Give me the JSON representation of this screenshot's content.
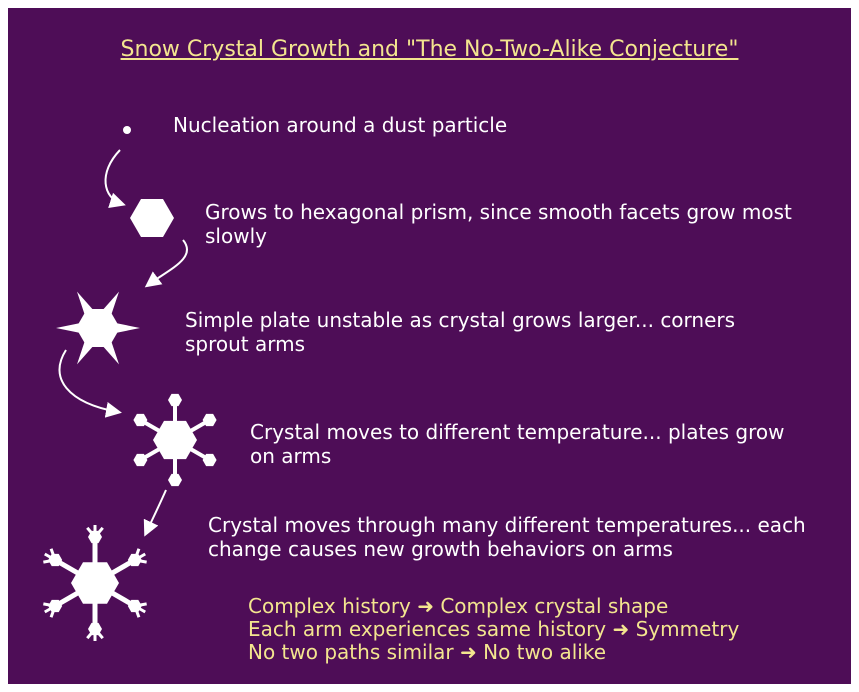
{
  "title": "Snow Crystal Growth and \"The No-Two-Alike Conjecture\"",
  "steps": [
    {
      "text": "Nucleation around a dust particle"
    },
    {
      "text": "Grows to hexagonal prism, since smooth facets grow most slowly"
    },
    {
      "text": "Simple plate unstable as crystal grows larger... corners sprout arms"
    },
    {
      "text": "Crystal moves to different temperature... plates grow on arms"
    },
    {
      "text": "Crystal moves through many different temperatures... each change causes new growth behaviors on arms"
    }
  ],
  "conclusions": [
    "Complex history ➜ Complex crystal shape",
    "Each arm experiences same history ➜ Symmetry",
    "No two paths similar ➜ No two alike"
  ]
}
